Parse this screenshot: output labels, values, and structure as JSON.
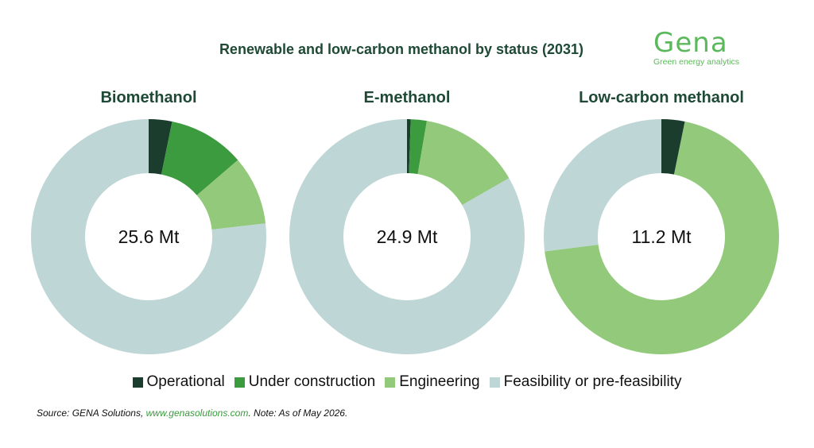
{
  "title": "Renewable and low-carbon methanol by status (2031)",
  "logo": {
    "word": "Gena",
    "tagline": "Green energy analytics",
    "color": "#5cb85c"
  },
  "colors": {
    "Operational": "#1b3d2d",
    "Under construction": "#3d9b3f",
    "Engineering": "#92c97a",
    "Feasibility or pre-feasibility": "#bfd6d6"
  },
  "legend": [
    "Operational",
    "Under construction",
    "Engineering",
    "Feasibility or pre-feasibility"
  ],
  "chart_data": [
    {
      "type": "pie",
      "title": "Biomethanol",
      "center_label": "25.6 Mt",
      "categories": [
        "Operational",
        "Under construction",
        "Engineering",
        "Feasibility or pre-feasibility"
      ],
      "values": [
        3.2,
        10.5,
        9.5,
        76.8
      ]
    },
    {
      "type": "pie",
      "title": "E-methanol",
      "center_label": "24.9 Mt",
      "categories": [
        "Operational",
        "Under construction",
        "Engineering",
        "Feasibility or pre-feasibility"
      ],
      "values": [
        0.5,
        2.2,
        14.0,
        83.3
      ]
    },
    {
      "type": "pie",
      "title": "Low-carbon methanol",
      "center_label": "11.2 Mt",
      "categories": [
        "Operational",
        "Under construction",
        "Engineering",
        "Feasibility or pre-feasibility"
      ],
      "values": [
        3.2,
        0.0,
        69.8,
        27.0
      ]
    }
  ],
  "source": {
    "prefix": "Source: GENA Solutions, ",
    "link": "www.genasolutions.com",
    "suffix": ". Note: As of May 2026."
  }
}
